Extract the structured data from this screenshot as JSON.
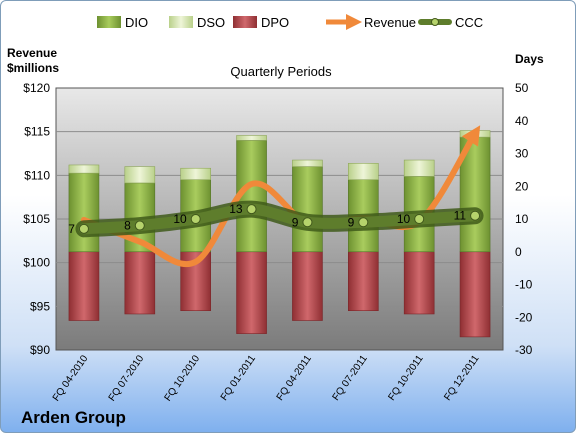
{
  "chart_data": {
    "type": "bar",
    "title": "Quarterly Periods",
    "company": "Arden Group",
    "y_left_label_line1": "Revenue",
    "y_left_label_line2": "$millions",
    "y_right_label": "Days",
    "y_left_range": [
      90,
      120
    ],
    "y_left_ticks": [
      "$90",
      "$95",
      "$100",
      "$105",
      "$110",
      "$115",
      "$120"
    ],
    "y_right_range": [
      -30,
      50
    ],
    "y_right_ticks": [
      "-30",
      "-20",
      "-10",
      "0",
      "10",
      "20",
      "30",
      "40",
      "50"
    ],
    "categories": [
      "FQ 04-2010",
      "FQ 07-2010",
      "FQ 10-2010",
      "FQ 01-2011",
      "FQ 04-2011",
      "FQ 07-2011",
      "FQ 10-2011",
      "FQ 12-2011"
    ],
    "legend": [
      "DIO",
      "DSO",
      "DPO",
      "Revenue",
      "CCC"
    ],
    "series": [
      {
        "name": "DIO",
        "axis": "right",
        "values": [
          24,
          21,
          22,
          34,
          26,
          22,
          23,
          35
        ]
      },
      {
        "name": "DSO",
        "axis": "right",
        "values": [
          2.5,
          5,
          3.5,
          1.5,
          2,
          5,
          5,
          2
        ]
      },
      {
        "name": "DPO",
        "axis": "right",
        "values": [
          -21,
          -19,
          -18,
          -25,
          -21,
          -18,
          -19,
          -26
        ]
      },
      {
        "name": "Revenue",
        "axis": "left",
        "values": [
          104.9,
          102.4,
          100.1,
          109,
          104.6,
          105.1,
          104.7,
          114.8
        ]
      },
      {
        "name": "CCC",
        "axis": "right",
        "values": [
          7,
          8,
          10,
          13,
          9,
          9,
          10,
          11
        ]
      }
    ],
    "ccc_labels": [
      "7",
      "8",
      "10",
      "13",
      "9",
      "9",
      "10",
      "11"
    ],
    "colors": {
      "DIO": "#8fb443",
      "DSO": "#d6e6ad",
      "DPO": "#b84a4e",
      "Revenue": "#f0893a",
      "CCC": "#4f6b22",
      "plot_bg_top": "#e6e6e6",
      "plot_bg_bottom": "#7a7a7a"
    },
    "grid": true,
    "legend_position": "top"
  }
}
